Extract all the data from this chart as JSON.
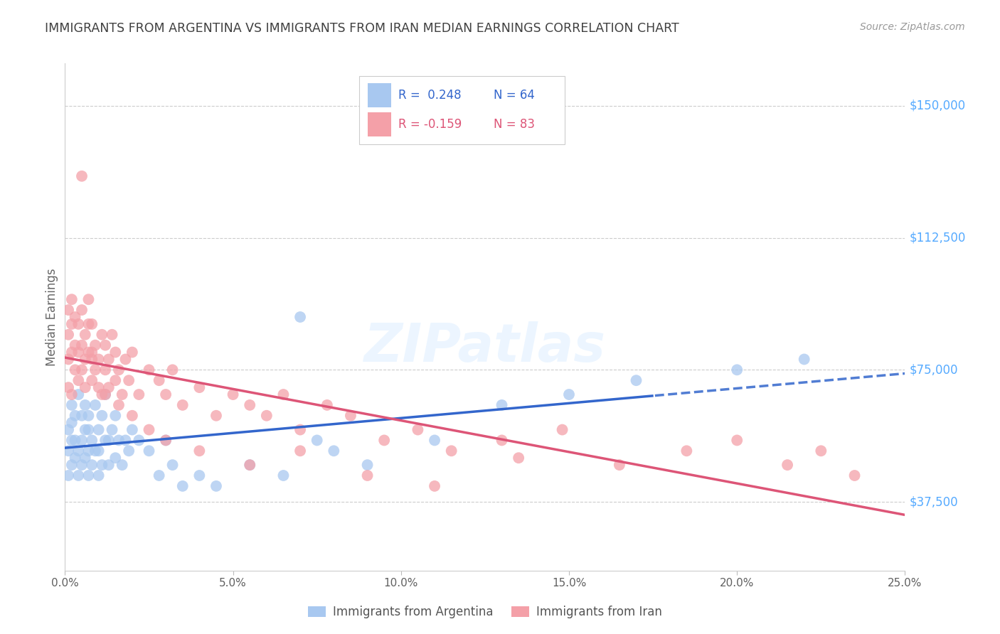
{
  "title": "IMMIGRANTS FROM ARGENTINA VS IMMIGRANTS FROM IRAN MEDIAN EARNINGS CORRELATION CHART",
  "source": "Source: ZipAtlas.com",
  "ylabel": "Median Earnings",
  "legend_label1": "Immigrants from Argentina",
  "legend_label2": "Immigrants from Iran",
  "legend_r1": "R =  0.248",
  "legend_n1": "N = 64",
  "legend_r2": "R = -0.159",
  "legend_n2": "N = 83",
  "ytick_labels": [
    "$37,500",
    "$75,000",
    "$112,500",
    "$150,000"
  ],
  "ytick_values": [
    37500,
    75000,
    112500,
    150000
  ],
  "ymax": 162000,
  "ymin": 18000,
  "xmin": 0.0,
  "xmax": 0.25,
  "color_argentina": "#A8C8F0",
  "color_iran": "#F4A0A8",
  "color_yticks": "#55AAFF",
  "color_trend_argentina": "#3366CC",
  "color_trend_iran": "#DD5577",
  "color_title": "#404040",
  "color_source": "#999999",
  "background_color": "#FFFFFF",
  "argentina_x": [
    0.001,
    0.001,
    0.001,
    0.002,
    0.002,
    0.002,
    0.002,
    0.003,
    0.003,
    0.003,
    0.004,
    0.004,
    0.004,
    0.005,
    0.005,
    0.005,
    0.006,
    0.006,
    0.006,
    0.007,
    0.007,
    0.007,
    0.007,
    0.008,
    0.008,
    0.009,
    0.009,
    0.01,
    0.01,
    0.01,
    0.011,
    0.011,
    0.012,
    0.012,
    0.013,
    0.013,
    0.014,
    0.015,
    0.015,
    0.016,
    0.017,
    0.018,
    0.019,
    0.02,
    0.022,
    0.025,
    0.028,
    0.03,
    0.032,
    0.035,
    0.04,
    0.045,
    0.055,
    0.065,
    0.07,
    0.075,
    0.08,
    0.09,
    0.11,
    0.13,
    0.15,
    0.17,
    0.2,
    0.22
  ],
  "argentina_y": [
    45000,
    52000,
    58000,
    48000,
    55000,
    60000,
    65000,
    50000,
    55000,
    62000,
    45000,
    52000,
    68000,
    48000,
    55000,
    62000,
    50000,
    58000,
    65000,
    45000,
    52000,
    58000,
    62000,
    48000,
    55000,
    52000,
    65000,
    45000,
    52000,
    58000,
    48000,
    62000,
    55000,
    68000,
    48000,
    55000,
    58000,
    50000,
    62000,
    55000,
    48000,
    55000,
    52000,
    58000,
    55000,
    52000,
    45000,
    55000,
    48000,
    42000,
    45000,
    42000,
    48000,
    45000,
    90000,
    55000,
    52000,
    48000,
    55000,
    65000,
    68000,
    72000,
    75000,
    78000
  ],
  "iran_x": [
    0.001,
    0.001,
    0.001,
    0.001,
    0.002,
    0.002,
    0.002,
    0.002,
    0.003,
    0.003,
    0.003,
    0.004,
    0.004,
    0.004,
    0.005,
    0.005,
    0.005,
    0.006,
    0.006,
    0.006,
    0.007,
    0.007,
    0.007,
    0.008,
    0.008,
    0.008,
    0.009,
    0.009,
    0.01,
    0.01,
    0.011,
    0.011,
    0.012,
    0.012,
    0.013,
    0.013,
    0.014,
    0.015,
    0.015,
    0.016,
    0.017,
    0.018,
    0.019,
    0.02,
    0.022,
    0.025,
    0.028,
    0.03,
    0.032,
    0.035,
    0.04,
    0.045,
    0.05,
    0.055,
    0.06,
    0.065,
    0.07,
    0.078,
    0.085,
    0.095,
    0.105,
    0.115,
    0.13,
    0.148,
    0.165,
    0.185,
    0.2,
    0.215,
    0.225,
    0.235,
    0.005,
    0.008,
    0.012,
    0.016,
    0.02,
    0.025,
    0.03,
    0.04,
    0.055,
    0.07,
    0.09,
    0.11,
    0.135
  ],
  "iran_y": [
    78000,
    85000,
    92000,
    70000,
    80000,
    88000,
    95000,
    68000,
    75000,
    82000,
    90000,
    72000,
    80000,
    88000,
    75000,
    82000,
    92000,
    70000,
    78000,
    85000,
    80000,
    88000,
    95000,
    72000,
    80000,
    88000,
    75000,
    82000,
    70000,
    78000,
    85000,
    68000,
    75000,
    82000,
    70000,
    78000,
    85000,
    72000,
    80000,
    75000,
    68000,
    78000,
    72000,
    80000,
    68000,
    75000,
    72000,
    68000,
    75000,
    65000,
    70000,
    62000,
    68000,
    65000,
    62000,
    68000,
    58000,
    65000,
    62000,
    55000,
    58000,
    52000,
    55000,
    58000,
    48000,
    52000,
    55000,
    48000,
    52000,
    45000,
    130000,
    78000,
    68000,
    65000,
    62000,
    58000,
    55000,
    52000,
    48000,
    52000,
    45000,
    42000,
    50000
  ]
}
